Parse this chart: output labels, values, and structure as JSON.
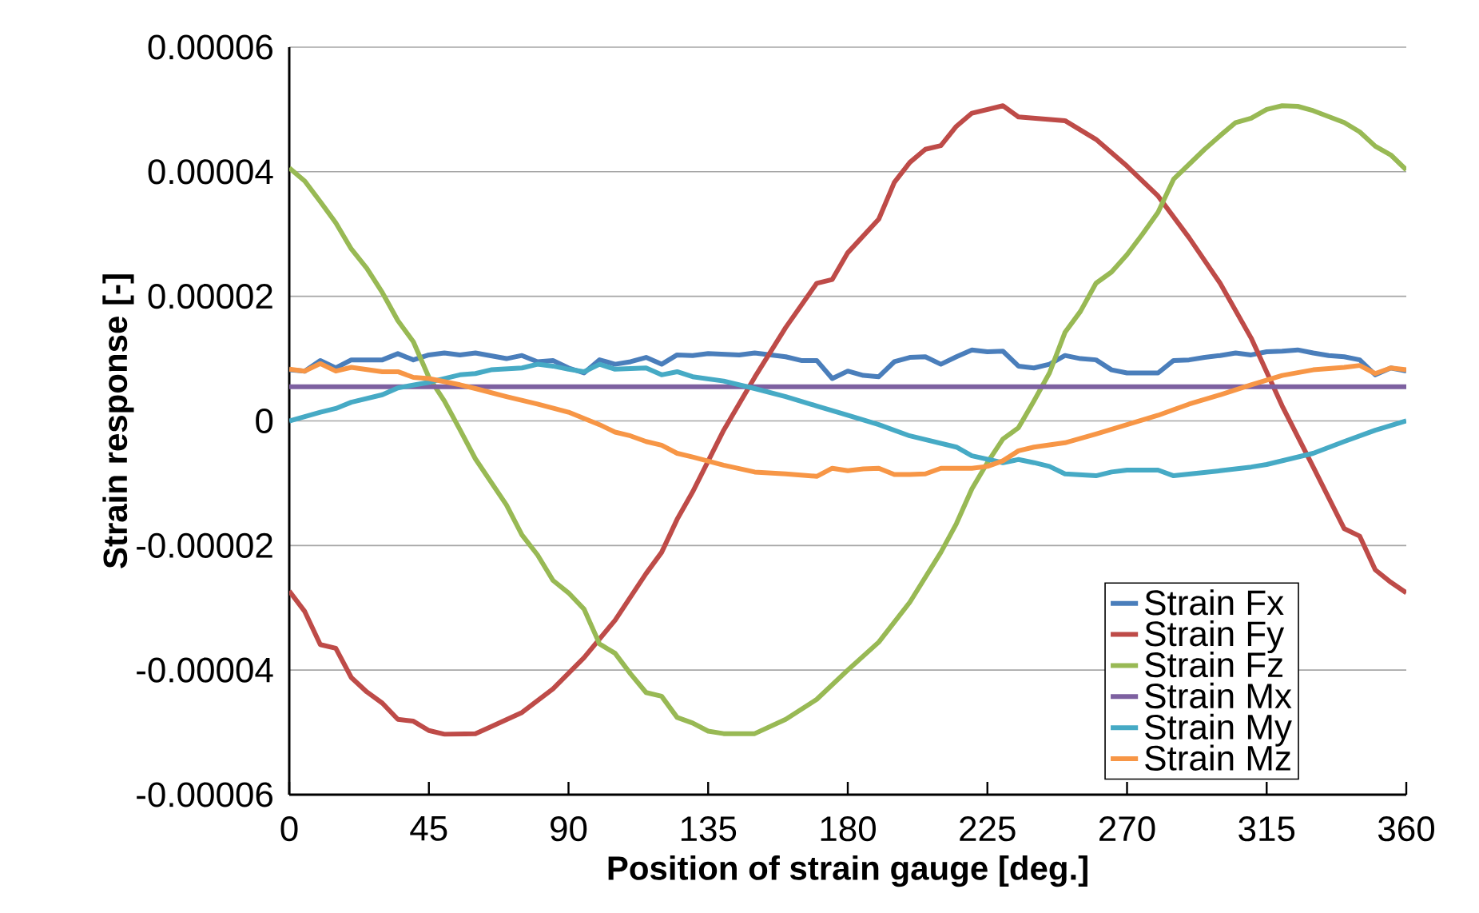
{
  "chart_data": {
    "type": "line",
    "xlabel": "Position of strain gauge [deg.]",
    "ylabel": "Strain response [-]",
    "xlim": [
      0,
      360
    ],
    "xticks": [
      0,
      45,
      90,
      135,
      180,
      225,
      270,
      315,
      360
    ],
    "ylim": [
      -6e-05,
      6e-05
    ],
    "yticks": [
      {
        "value": -6e-05,
        "label": "-0.00006"
      },
      {
        "value": -4e-05,
        "label": "-0.00004"
      },
      {
        "value": -2e-05,
        "label": "-0.00002"
      },
      {
        "value": 0,
        "label": "0"
      },
      {
        "value": 2e-05,
        "label": "0.00002"
      },
      {
        "value": 4e-05,
        "label": "0.00004"
      },
      {
        "value": 6e-05,
        "label": "0.00006"
      }
    ],
    "grid": "y",
    "legend": "bottom right",
    "series": [
      {
        "name": "Strain Fx",
        "color": "#4a7ebb",
        "x": [
          0,
          5,
          10,
          15,
          20,
          30,
          35,
          40,
          45,
          50,
          55,
          60,
          70,
          75,
          80,
          85,
          90,
          95,
          100,
          105,
          110,
          115,
          120,
          125,
          130,
          135,
          145,
          150,
          160,
          165,
          170,
          175,
          180,
          185,
          190,
          195,
          200,
          205,
          210,
          215,
          220,
          225,
          230,
          235,
          240,
          245,
          250,
          255,
          260,
          265,
          270,
          280,
          285,
          290,
          295,
          300,
          305,
          310,
          315,
          320,
          325,
          330,
          335,
          340,
          345,
          350,
          355,
          360
        ],
        "values": [
          8.2e-06,
          8e-06,
          9.7e-06,
          8.5e-06,
          9.8e-06,
          9.8e-06,
          1.08e-05,
          9.8e-06,
          1.06e-05,
          1.09e-05,
          1.06e-05,
          1.09e-05,
          1e-05,
          1.05e-05,
          9.5e-06,
          9.7e-06,
          8.5e-06,
          7.7e-06,
          9.8e-06,
          9.1e-06,
          9.5e-06,
          1.02e-05,
          9.1e-06,
          1.06e-05,
          1.05e-05,
          1.08e-05,
          1.06e-05,
          1.09e-05,
          1.03e-05,
          9.7e-06,
          9.7e-06,
          6.8e-06,
          8e-06,
          7.3e-06,
          7.1e-06,
          9.5e-06,
          1.02e-05,
          1.03e-05,
          9.1e-06,
          1.03e-05,
          1.14e-05,
          1.11e-05,
          1.12e-05,
          8.8e-06,
          8.5e-06,
          9.1e-06,
          1.05e-05,
          1e-05,
          9.8e-06,
          8.2e-06,
          7.7e-06,
          7.7e-06,
          9.7e-06,
          9.8e-06,
          1.02e-05,
          1.05e-05,
          1.09e-05,
          1.06e-05,
          1.11e-05,
          1.12e-05,
          1.14e-05,
          1.09e-05,
          1.05e-05,
          1.03e-05,
          9.8e-06,
          7.4e-06,
          8.5e-06,
          8e-06
        ]
      },
      {
        "name": "Strain Fy",
        "color": "#be4b48",
        "x": [
          0,
          5,
          10,
          15,
          20,
          25,
          30,
          35,
          40,
          45,
          50,
          60,
          65,
          75,
          85,
          95,
          105,
          115,
          120,
          125,
          130,
          140,
          150,
          160,
          170,
          175,
          180,
          190,
          195,
          200,
          205,
          210,
          215,
          220,
          230,
          235,
          250,
          260,
          270,
          280,
          290,
          300,
          310,
          320,
          330,
          340,
          345,
          350,
          355,
          360
        ],
        "values": [
          -2.73e-05,
          -3.06e-05,
          -3.59e-05,
          -3.65e-05,
          -4.12e-05,
          -4.35e-05,
          -4.53e-05,
          -4.79e-05,
          -4.82e-05,
          -4.97e-05,
          -5.03e-05,
          -5.02e-05,
          -4.91e-05,
          -4.68e-05,
          -4.3e-05,
          -3.8e-05,
          -3.2e-05,
          -2.45e-05,
          -2.11e-05,
          -1.58e-05,
          -1.14e-05,
          -1.5e-06,
          7e-06,
          1.5e-05,
          2.21e-05,
          2.27e-05,
          2.7e-05,
          3.24e-05,
          3.83e-05,
          4.15e-05,
          4.36e-05,
          4.42e-05,
          4.73e-05,
          4.94e-05,
          5.06e-05,
          4.88e-05,
          4.82e-05,
          4.52e-05,
          4.09e-05,
          3.61e-05,
          2.94e-05,
          2.21e-05,
          1.33e-05,
          2.4e-06,
          -7.4e-06,
          -1.73e-05,
          -1.85e-05,
          -2.39e-05,
          -2.59e-05,
          -2.76e-05
        ]
      },
      {
        "name": "Strain Fz",
        "color": "#98b954",
        "x": [
          0,
          5,
          10,
          15,
          20,
          25,
          30,
          35,
          40,
          45,
          50,
          55,
          60,
          70,
          75,
          80,
          85,
          90,
          95,
          100,
          105,
          110,
          115,
          120,
          125,
          130,
          135,
          140,
          150,
          160,
          170,
          180,
          190,
          200,
          210,
          215,
          220,
          225,
          230,
          235,
          240,
          245,
          250,
          255,
          260,
          265,
          270,
          275,
          280,
          285,
          290,
          295,
          300,
          305,
          310,
          315,
          320,
          325,
          330,
          340,
          345,
          350,
          355,
          360
        ],
        "values": [
          4.06e-05,
          3.85e-05,
          3.52e-05,
          3.18e-05,
          2.76e-05,
          2.45e-05,
          2.06e-05,
          1.61e-05,
          1.27e-05,
          7e-06,
          3.2e-06,
          -1.4e-06,
          -6.1e-06,
          -1.35e-05,
          -1.83e-05,
          -2.15e-05,
          -2.56e-05,
          -2.76e-05,
          -3.02e-05,
          -3.58e-05,
          -3.73e-05,
          -4.06e-05,
          -4.36e-05,
          -4.42e-05,
          -4.76e-05,
          -4.85e-05,
          -4.98e-05,
          -5.02e-05,
          -5.02e-05,
          -4.79e-05,
          -4.47e-05,
          -4e-05,
          -3.55e-05,
          -2.91e-05,
          -2.11e-05,
          -1.65e-05,
          -1.09e-05,
          -6.7e-06,
          -2.9e-06,
          -1.1e-06,
          3.2e-06,
          7.7e-06,
          1.42e-05,
          1.76e-05,
          2.21e-05,
          2.39e-05,
          2.67e-05,
          3e-05,
          3.35e-05,
          3.88e-05,
          4.12e-05,
          4.36e-05,
          4.58e-05,
          4.79e-05,
          4.86e-05,
          5e-05,
          5.06e-05,
          5.05e-05,
          4.98e-05,
          4.79e-05,
          4.64e-05,
          4.41e-05,
          4.27e-05,
          4.03e-05
        ]
      },
      {
        "name": "Strain Mx",
        "color": "#7d60a0",
        "x": [
          0,
          90,
          180,
          270,
          360
        ],
        "values": [
          5.5e-06,
          5.5e-06,
          5.5e-06,
          5.5e-06,
          5.5e-06
        ]
      },
      {
        "name": "Strain My",
        "color": "#46aac5",
        "x": [
          0,
          10,
          15,
          20,
          30,
          35,
          45,
          55,
          60,
          65,
          75,
          80,
          85,
          90,
          95,
          100,
          105,
          115,
          120,
          125,
          130,
          140,
          150,
          160,
          170,
          180,
          190,
          200,
          210,
          215,
          220,
          230,
          235,
          240,
          245,
          250,
          260,
          265,
          270,
          280,
          285,
          300,
          310,
          315,
          320,
          330,
          340,
          350,
          360
        ],
        "values": [
          0,
          1.4e-06,
          2e-06,
          3e-06,
          4.2e-06,
          5.3e-06,
          6.2e-06,
          7.4e-06,
          7.6e-06,
          8.2e-06,
          8.5e-06,
          9.1e-06,
          8.8e-06,
          8.3e-06,
          7.9e-06,
          9.1e-06,
          8.3e-06,
          8.5e-06,
          7.4e-06,
          7.9e-06,
          7.1e-06,
          6.4e-06,
          5.2e-06,
          3.9e-06,
          2.4e-06,
          9e-07,
          -6e-07,
          -2.4e-06,
          -3.6e-06,
          -4.2e-06,
          -5.6e-06,
          -6.7e-06,
          -6.2e-06,
          -6.7e-06,
          -7.3e-06,
          -8.5e-06,
          -8.8e-06,
          -8.2e-06,
          -7.9e-06,
          -7.9e-06,
          -8.8e-06,
          -8e-06,
          -7.4e-06,
          -7e-06,
          -6.4e-06,
          -5.2e-06,
          -3.3e-06,
          -1.5e-06,
          0
        ]
      },
      {
        "name": "Strain Mz",
        "color": "#f79646",
        "x": [
          0,
          5,
          10,
          15,
          20,
          30,
          35,
          40,
          45,
          55,
          60,
          70,
          80,
          90,
          100,
          105,
          110,
          115,
          120,
          125,
          130,
          140,
          150,
          160,
          170,
          175,
          180,
          185,
          190,
          195,
          200,
          205,
          210,
          220,
          225,
          230,
          235,
          240,
          250,
          260,
          270,
          280,
          290,
          300,
          310,
          320,
          330,
          340,
          345,
          350,
          355,
          360
        ],
        "values": [
          8.3e-06,
          8e-06,
          9.2e-06,
          8e-06,
          8.6e-06,
          7.9e-06,
          7.9e-06,
          7e-06,
          6.8e-06,
          5.8e-06,
          5.2e-06,
          3.9e-06,
          2.7e-06,
          1.4e-06,
          -6e-07,
          -1.8e-06,
          -2.4e-06,
          -3.3e-06,
          -3.9e-06,
          -5.2e-06,
          -5.8e-06,
          -7.1e-06,
          -8.2e-06,
          -8.5e-06,
          -8.9e-06,
          -7.6e-06,
          -8e-06,
          -7.7e-06,
          -7.6e-06,
          -8.6e-06,
          -8.6e-06,
          -8.5e-06,
          -7.6e-06,
          -7.6e-06,
          -7.3e-06,
          -6.4e-06,
          -4.8e-06,
          -4.2e-06,
          -3.5e-06,
          -2.1e-06,
          -6e-07,
          9e-07,
          2.7e-06,
          4.2e-06,
          5.8e-06,
          7.3e-06,
          8.2e-06,
          8.6e-06,
          8.9e-06,
          7.6e-06,
          8.5e-06,
          8.2e-06
        ]
      }
    ]
  }
}
